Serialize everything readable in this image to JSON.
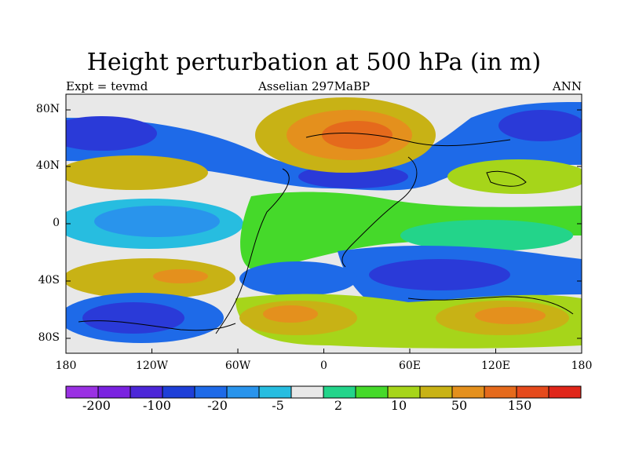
{
  "title": "Height perturbation at 500 hPa (in m)",
  "subtitle_left": "Expt = tevmd",
  "subtitle_center": "Asselian 297MaBP",
  "subtitle_right": "ANN",
  "lat_labels": [
    "80N",
    "40N",
    "0",
    "40S",
    "80S"
  ],
  "lon_labels": [
    "180",
    "120W",
    "60W",
    "0",
    "60E",
    "120E",
    "180"
  ],
  "colorbar": {
    "colors": [
      "#9a31e3",
      "#7a22e0",
      "#4c27d8",
      "#1e3fd8",
      "#1e6ae8",
      "#2994ec",
      "#27bde0",
      "#e8e8e8",
      "#23d48a",
      "#45d92a",
      "#a6d51a",
      "#c8b215",
      "#e4901d",
      "#e56a1c",
      "#e54a1c",
      "#e0261a"
    ],
    "labels": [
      "-200",
      "-100",
      "-20",
      "-5",
      "2",
      "10",
      "50",
      "150"
    ]
  },
  "colors": {
    "neg_strong": "#2a3ad8",
    "neg_mid": "#1e6ae8",
    "neg_weak": "#27bde0",
    "neutral": "#e8e8e8",
    "pos_weak": "#45d92a",
    "pos_mid": "#c8b215",
    "pos_strong": "#e4901d",
    "pos_max": "#e56a1c"
  }
}
